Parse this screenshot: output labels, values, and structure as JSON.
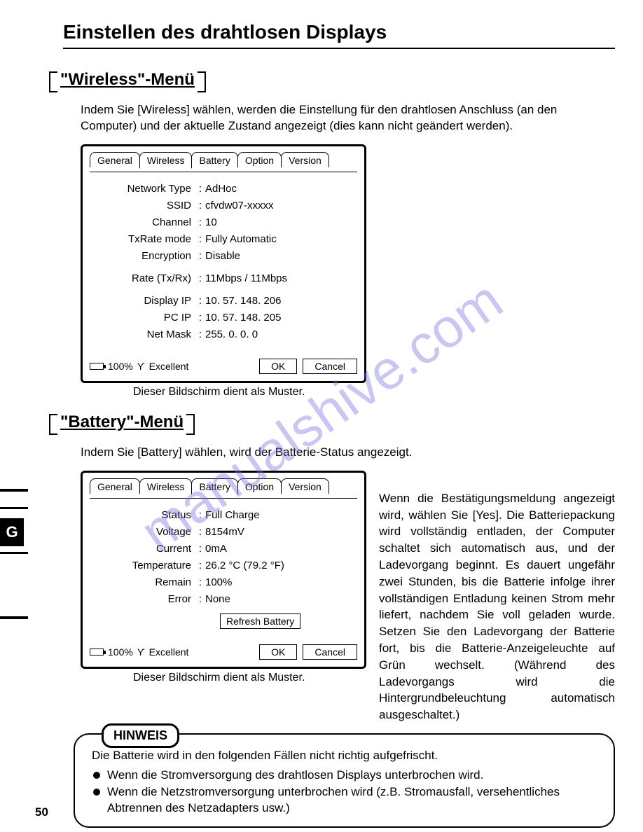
{
  "page": {
    "title": "Einstellen des drahtlosen Displays",
    "number": "50",
    "side_tab": "G"
  },
  "watermark": "manualshive.com",
  "sections": {
    "wireless": {
      "heading": "\"Wireless\"-Menü",
      "intro": "Indem Sie [Wireless] wählen, werden die Einstellung für den drahtlosen Anschluss (an den Computer) und der aktuelle Zustand angezeigt (dies kann nicht geändert werden).",
      "caption": "Dieser Bildschirm dient als Muster."
    },
    "battery": {
      "heading": "\"Battery\"-Menü",
      "intro": "Indem Sie [Battery] wählen, wird der Batterie-Status angezeigt.",
      "caption": "Dieser Bildschirm dient als Muster.",
      "side_text": "Wenn die Bestätigungsmeldung angezeigt wird, wählen Sie [Yes]. Die Batteriepackung wird vollständig entladen, der Computer schaltet sich automatisch aus, und der Ladevorgang beginnt. Es dauert ungefähr zwei Stunden, bis die Batterie infolge ihrer vollständigen Entladung keinen Strom mehr liefert, nachdem Sie voll geladen wurde. Setzen Sie den Ladevorgang der Batterie fort, bis die Batterie-Anzeigeleuchte auf Grün wechselt. (Während des Ladevorgangs wird die Hintergrundbeleuchtung automatisch ausgeschaltet.)"
    }
  },
  "tabs": [
    "General",
    "Wireless",
    "Battery",
    "Option",
    "Version"
  ],
  "wireless_panel": {
    "rows": [
      {
        "label": "Network Type",
        "value": "AdHoc"
      },
      {
        "label": "SSID",
        "value": "cfvdw07-xxxxx"
      },
      {
        "label": "Channel",
        "value": "10"
      },
      {
        "label": "TxRate mode",
        "value": "Fully Automatic"
      },
      {
        "label": "Encryption",
        "value": "Disable"
      },
      {
        "label": "Rate (Tx/Rx)",
        "value": "11Mbps / 11Mbps"
      },
      {
        "label": "Display IP",
        "value": "10.  57. 148. 206"
      },
      {
        "label": "PC IP",
        "value": "10.  57. 148. 205"
      },
      {
        "label": "Net Mask",
        "value": "255.    0.    0.    0"
      }
    ],
    "status_pct": "100%",
    "status_sig": "Excellent",
    "ok": "OK",
    "cancel": "Cancel"
  },
  "battery_panel": {
    "rows": [
      {
        "label": "Status",
        "value": "Full Charge"
      },
      {
        "label": "Voltage",
        "value": "8154mV"
      },
      {
        "label": "Current",
        "value": "0mA"
      },
      {
        "label": "Temperature",
        "value": "26.2 °C (79.2 °F)"
      },
      {
        "label": "Remain",
        "value": "100%"
      },
      {
        "label": "Error",
        "value": "None"
      }
    ],
    "refresh": "Refresh Battery",
    "status_pct": "100%",
    "status_sig": "Excellent",
    "ok": "OK",
    "cancel": "Cancel"
  },
  "hinweis": {
    "label": "HINWEIS",
    "intro": "Die Batterie wird in den folgenden Fällen nicht richtig aufgefrischt.",
    "bullets": [
      "Wenn die Stromversorgung des drahtlosen Displays unterbrochen wird.",
      "Wenn die Netzstromversorgung unterbrochen wird (z.B. Stromausfall, versehentliches Abtrennen des Netzadapters usw.)"
    ]
  }
}
